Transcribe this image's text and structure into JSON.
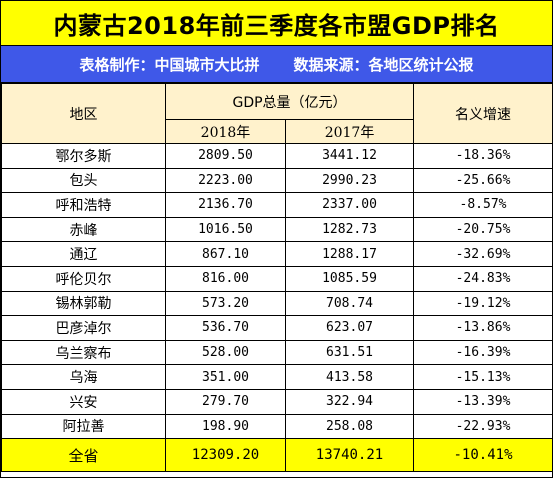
{
  "title": "内蒙古2018年前三季度各市盟GDP排名",
  "subtitle": {
    "maker": "表格制作：中国城市大比拼",
    "source": "数据来源：各地区统计公报"
  },
  "colors": {
    "title_bg": "#FFFF00",
    "subtitle_bg": "#3F58E8",
    "header_bg": "#FFF2CC",
    "total_bg": "#FFFF00"
  },
  "headers": {
    "region": "地区",
    "gdp_total": "GDP总量（亿元）",
    "y2018": "2018年",
    "y2017": "2017年",
    "growth": "名义增速"
  },
  "rows": [
    {
      "region": "鄂尔多斯",
      "gdp2018": "2809.50",
      "gdp2017": "3441.12",
      "growth": "-18.36%"
    },
    {
      "region": "包头",
      "gdp2018": "2223.00",
      "gdp2017": "2990.23",
      "growth": "-25.66%"
    },
    {
      "region": "呼和浩特",
      "gdp2018": "2136.70",
      "gdp2017": "2337.00",
      "growth": "-8.57%"
    },
    {
      "region": "赤峰",
      "gdp2018": "1016.50",
      "gdp2017": "1282.73",
      "growth": "-20.75%"
    },
    {
      "region": "通辽",
      "gdp2018": "867.10",
      "gdp2017": "1288.17",
      "growth": "-32.69%"
    },
    {
      "region": "呼伦贝尔",
      "gdp2018": "816.00",
      "gdp2017": "1085.59",
      "growth": "-24.83%"
    },
    {
      "region": "锡林郭勒",
      "gdp2018": "573.20",
      "gdp2017": "708.74",
      "growth": "-19.12%"
    },
    {
      "region": "巴彦淖尔",
      "gdp2018": "536.70",
      "gdp2017": "623.07",
      "growth": "-13.86%"
    },
    {
      "region": "乌兰察布",
      "gdp2018": "528.00",
      "gdp2017": "631.51",
      "growth": "-16.39%"
    },
    {
      "region": "乌海",
      "gdp2018": "351.00",
      "gdp2017": "413.58",
      "growth": "-15.13%"
    },
    {
      "region": "兴安",
      "gdp2018": "279.70",
      "gdp2017": "322.94",
      "growth": "-13.39%"
    },
    {
      "region": "阿拉善",
      "gdp2018": "198.90",
      "gdp2017": "258.08",
      "growth": "-22.93%"
    }
  ],
  "total": {
    "region": "全省",
    "gdp2018": "12309.20",
    "gdp2017": "13740.21",
    "growth": "-10.41%"
  }
}
